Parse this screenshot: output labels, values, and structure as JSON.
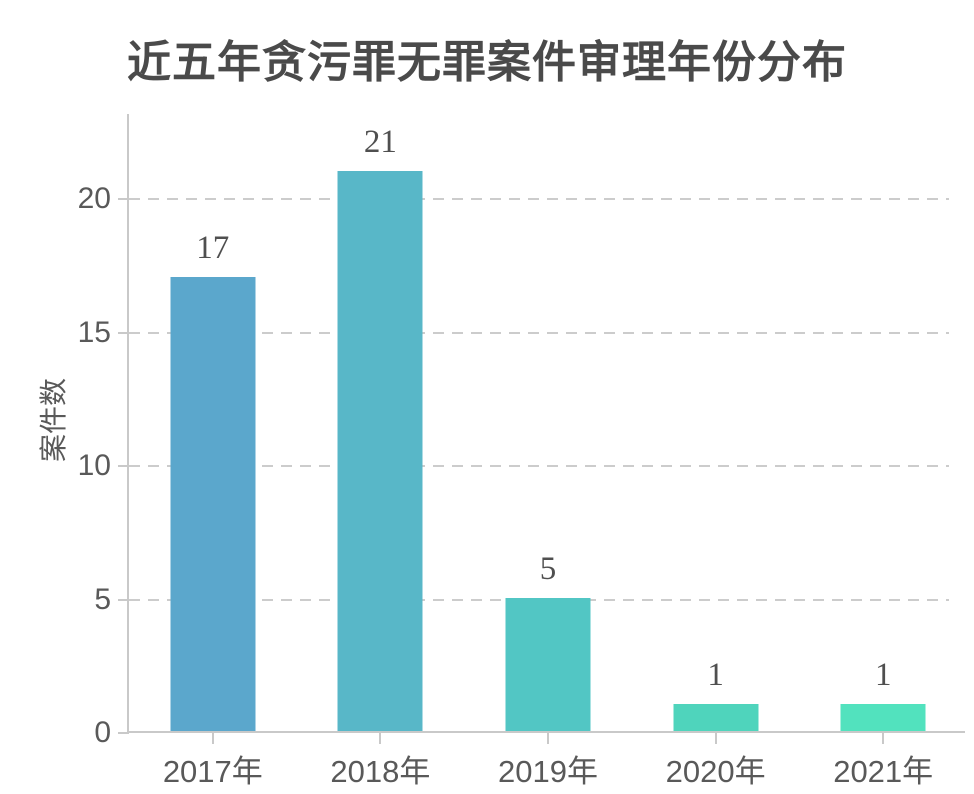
{
  "chart_data": {
    "type": "bar",
    "title": "近五年贪污罪无罪案件审理年份分布",
    "ylabel": "案件数",
    "xlabel": "",
    "categories": [
      "2017年",
      "2018年",
      "2019年",
      "2020年",
      "2021年"
    ],
    "values": [
      17,
      21,
      5,
      1,
      1
    ],
    "value_labels": [
      "17",
      "21",
      "5",
      "1",
      "1"
    ],
    "bar_colors": [
      "#5BA7CC",
      "#58B7C8",
      "#52C6C4",
      "#4FD4BC",
      "#52E2BE"
    ],
    "yticks": [
      0,
      5,
      10,
      15,
      20
    ],
    "ylim": [
      0,
      23.2
    ],
    "grid": "horizontal dashed, at y ticks 5-20",
    "legend": "none"
  },
  "colors": {
    "title_text": "#4a4a4a",
    "tick_text": "#595959",
    "value_label_text": "#4f4f4f",
    "axis_line": "#c9c9c9",
    "gridline": "#cccccc",
    "background": "#ffffff"
  }
}
